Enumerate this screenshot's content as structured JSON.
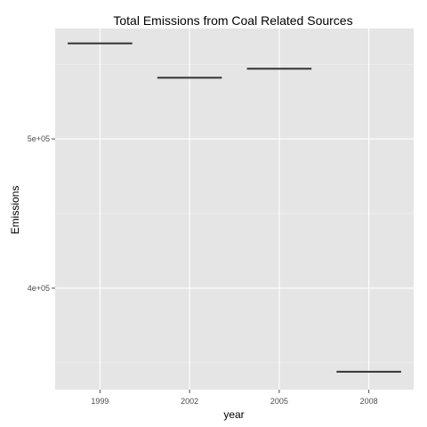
{
  "chart_data": {
    "type": "line",
    "title": "Total Emissions from Coal Related Sources",
    "xlabel": "year",
    "ylabel": "Emissions",
    "categories": [
      "1999",
      "2002",
      "2005",
      "2008"
    ],
    "series": [
      {
        "values": [
          564000,
          541000,
          547000,
          344000
        ]
      }
    ],
    "y_ticks": [
      {
        "value": 400000,
        "label": "4e+05"
      },
      {
        "value": 500000,
        "label": "5e+05"
      }
    ],
    "ylim": [
      332000,
      574000
    ],
    "grid": true,
    "colors": {
      "panel_background": "#e5e5e5",
      "grid_major": "#ffffff",
      "grid_minor": "#f2f2f2",
      "segment": "#333333"
    }
  }
}
